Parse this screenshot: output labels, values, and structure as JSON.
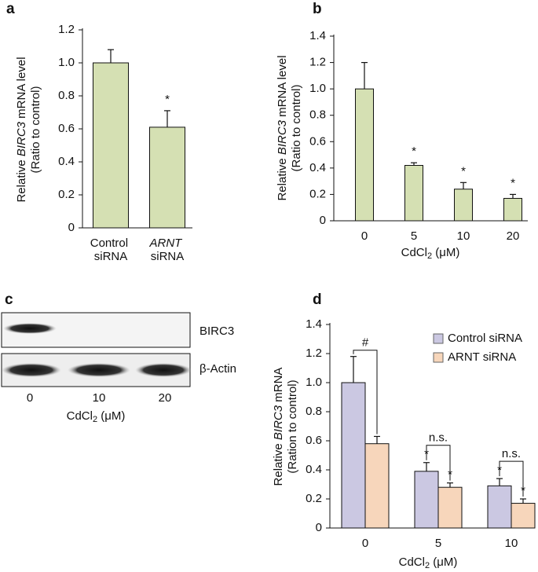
{
  "chart_data": [
    {
      "type": "bar",
      "panel": "a",
      "categories": [
        "Control siRNA",
        "ARNT siRNA"
      ],
      "values": [
        1.0,
        0.61
      ],
      "errors": [
        0.08,
        0.1
      ],
      "color": "#d5e0b3",
      "marks": [
        null,
        "*"
      ],
      "ylabel": [
        "Relative ",
        "BIRC3",
        " mRNA level",
        "(Ratio to control)"
      ],
      "ylim": [
        0,
        1.2
      ],
      "yticks": [
        0,
        0.2,
        0.4,
        0.6,
        0.8,
        {
          "value": 1,
          "label": "1.0"
        },
        1.2
      ]
    },
    {
      "type": "bar",
      "panel": "b",
      "categories": [
        "0",
        "5",
        "10",
        "20"
      ],
      "values": [
        1.0,
        0.42,
        0.24,
        0.17
      ],
      "errors": [
        0.2,
        0.02,
        0.05,
        0.03
      ],
      "color": "#d5e0b3",
      "marks": [
        null,
        "*",
        "*",
        "*"
      ],
      "ylabel": [
        "Relative ",
        "BIRC3",
        " mRNA level",
        "(Ratio to control)"
      ],
      "xlabel": [
        "CdCl",
        "2",
        " (μM)"
      ],
      "ylim": [
        0,
        1.4
      ],
      "yticks": [
        0,
        0.2,
        0.4,
        0.6,
        0.8,
        {
          "value": 1,
          "label": "1.0"
        },
        1.2,
        1.4
      ]
    },
    {
      "type": "grouped_bar",
      "panel": "d",
      "categories": [
        "0",
        "5",
        "10"
      ],
      "series": [
        {
          "name": "Control siRNA",
          "color": "#cbc8e2",
          "values": [
            1.0,
            0.39,
            0.29
          ],
          "errors": [
            0.18,
            0.06,
            0.05
          ],
          "marks": [
            null,
            "*",
            "*"
          ]
        },
        {
          "name": "ARNT siRNA",
          "color": "#f7d6bb",
          "values": [
            0.58,
            0.28,
            0.17
          ],
          "errors": [
            0.05,
            0.03,
            0.03
          ],
          "marks": [
            null,
            "*",
            "*"
          ]
        }
      ],
      "bracket_labels": [
        "#",
        "n.s.",
        "n.s."
      ],
      "ylabel": [
        "Relative ",
        "BIRC3",
        " mRNA",
        "(Ration to control)"
      ],
      "xlabel": [
        "CdCl",
        "2",
        " (μM)"
      ],
      "ylim": [
        0,
        1.4
      ],
      "yticks": [
        0,
        0.2,
        0.4,
        0.6,
        0.8,
        {
          "value": 1,
          "label": "1.0"
        },
        1.2,
        1.4
      ],
      "legend": "upper right"
    }
  ],
  "blot": {
    "panel": "c",
    "bands": [
      "BIRC3",
      "β-Actin"
    ],
    "lanes": [
      "0",
      "10",
      "20"
    ],
    "xlabel": [
      "CdCl",
      "2",
      " (μM)"
    ]
  }
}
